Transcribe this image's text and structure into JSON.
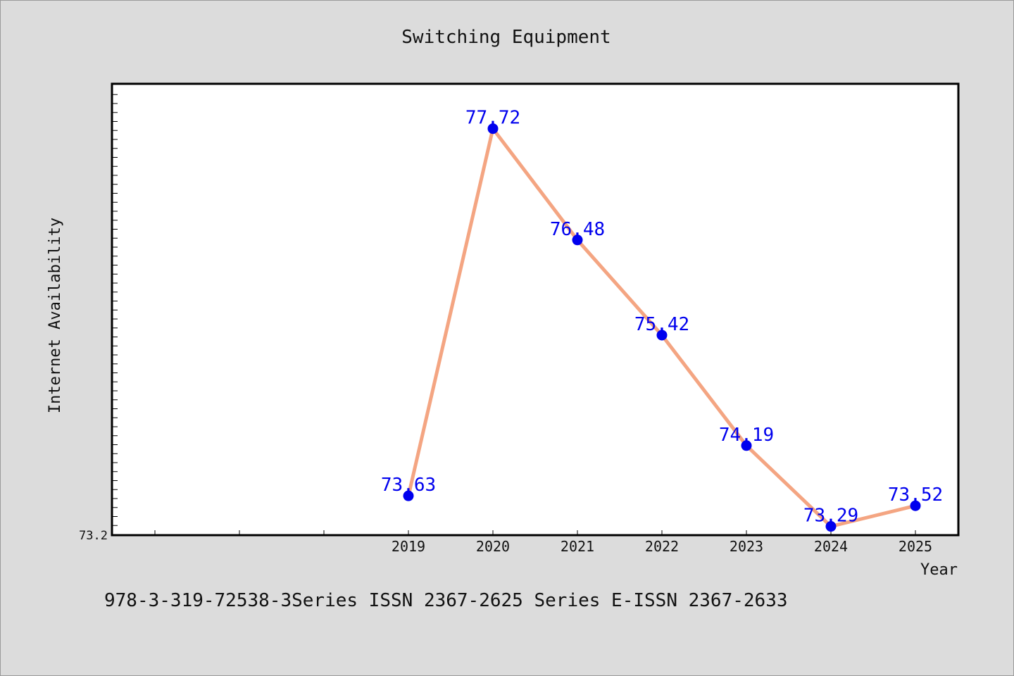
{
  "chart_data": {
    "type": "line",
    "title": "Switching Equipment",
    "xlabel": "Year",
    "ylabel": "Internet Availability",
    "categories": [
      "2019",
      "2020",
      "2021",
      "2022",
      "2023",
      "2024",
      "2025"
    ],
    "values": [
      73.63,
      77.72,
      76.48,
      75.42,
      74.19,
      73.29,
      73.52
    ],
    "data_labels": [
      "73.63",
      "77.72",
      "76.48",
      "75.42",
      "74.19",
      "73.29",
      "73.52"
    ],
    "y_tick_label": "73.2",
    "ylim": [
      73.2,
      78.2
    ],
    "grid": false,
    "colors": {
      "line": "#f4a582",
      "marker": "#0000ee",
      "label": "#0000ee"
    }
  },
  "footer": {
    "text": "978-3-319-72538-3Series ISSN 2367-2625 Series E-ISSN 2367-2633"
  }
}
